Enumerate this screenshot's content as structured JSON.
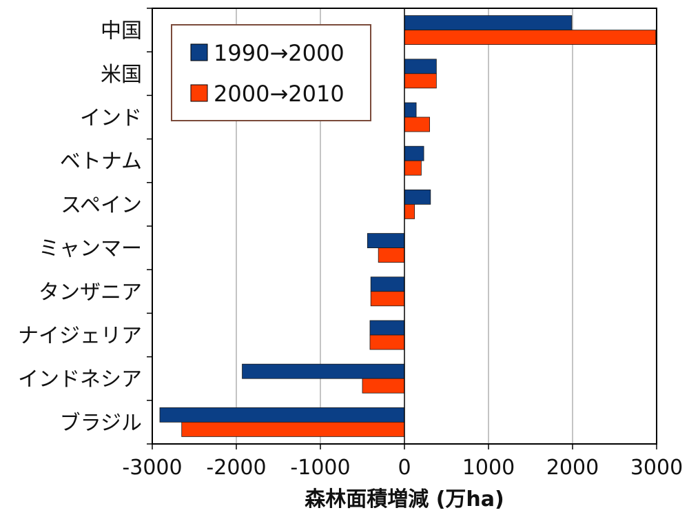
{
  "chart_data": {
    "type": "bar",
    "orientation": "horizontal",
    "categories": [
      "中国",
      "米国",
      "インド",
      "ベトナム",
      "スペイン",
      "ミャンマー",
      "タンザニア",
      "ナイジェリア",
      "インドネシア",
      "ブラジル"
    ],
    "series": [
      {
        "name": "1990→2000",
        "color": "#0b3f86",
        "values": [
          1990,
          380,
          140,
          230,
          310,
          -440,
          -400,
          -410,
          -1930,
          -2910
        ]
      },
      {
        "name": "2000→2010",
        "color": "#ff3d00",
        "values": [
          2990,
          380,
          300,
          200,
          120,
          -310,
          -400,
          -410,
          -500,
          -2650
        ]
      }
    ],
    "xlabel": "森林面積増減 (万ha)",
    "xlim": [
      -3000,
      3000
    ],
    "xticks": [
      -3000,
      -2000,
      -1000,
      0,
      1000,
      2000,
      3000
    ],
    "xtick_labels": [
      "-3000",
      "-2000",
      "-1000",
      "0",
      "1000",
      "2000",
      "3000"
    ],
    "grid": "vertical",
    "legend_position": "top-left"
  }
}
